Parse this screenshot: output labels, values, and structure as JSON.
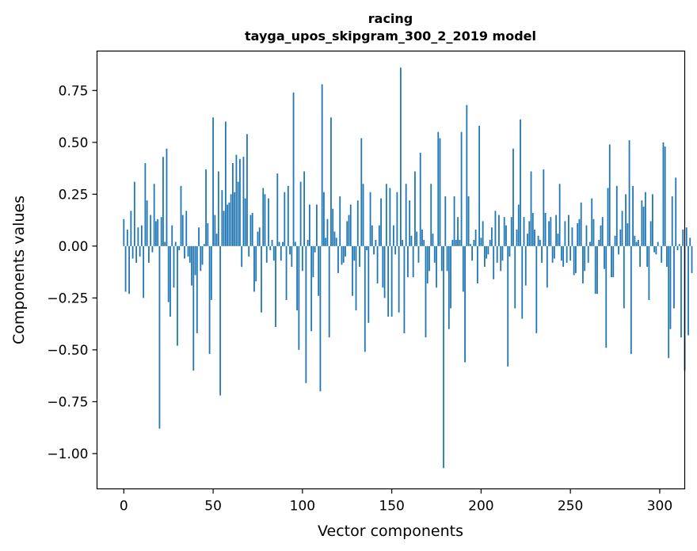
{
  "chart_data": {
    "type": "bar",
    "title": "racing",
    "subtitle": "tayga_upos_skipgram_300_2_2019 model",
    "xlabel": "Vector components",
    "ylabel": "Components values",
    "xlim": [
      -15,
      314
    ],
    "ylim": [
      -1.17,
      0.94
    ],
    "xticks": [
      0,
      50,
      100,
      150,
      200,
      250,
      300
    ],
    "yticks": [
      -1.0,
      -0.75,
      -0.5,
      -0.25,
      0.0,
      0.25,
      0.5,
      0.75
    ],
    "ytick_labels": [
      "−1.00",
      "−0.75",
      "−0.50",
      "−0.25",
      "0.00",
      "0.25",
      "0.50",
      "0.75"
    ],
    "xtick_labels": [
      "0",
      "50",
      "100",
      "150",
      "200",
      "250",
      "300"
    ],
    "bar_color": "#1f77b4",
    "grid": false,
    "values": [
      0.13,
      -0.22,
      0.08,
      -0.23,
      0.17,
      -0.06,
      0.31,
      -0.08,
      0.09,
      -0.05,
      0.1,
      -0.25,
      0.4,
      0.22,
      -0.08,
      0.15,
      -0.03,
      0.3,
      0.12,
      0.13,
      -0.88,
      0.14,
      0.43,
      0.02,
      0.47,
      -0.27,
      -0.34,
      0.1,
      -0.2,
      0.02,
      -0.48,
      -0.02,
      0.29,
      0.15,
      -0.06,
      0.17,
      -0.05,
      -0.08,
      -0.19,
      -0.6,
      -0.14,
      -0.42,
      0.09,
      -0.12,
      -0.09,
      0.01,
      0.37,
      0.11,
      -0.52,
      -0.26,
      0.62,
      0.15,
      0.06,
      0.36,
      -0.72,
      0.27,
      0.17,
      0.6,
      0.2,
      0.21,
      0.25,
      0.4,
      0.26,
      0.44,
      0.31,
      0.42,
      -0.1,
      0.43,
      0.23,
      0.54,
      -0.05,
      0.15,
      0.16,
      -0.22,
      -0.17,
      0.07,
      0.09,
      -0.32,
      0.28,
      0.25,
      -0.08,
      0.23,
      -0.02,
      0.03,
      -0.07,
      -0.39,
      0.35,
      0.02,
      -0.07,
      0.02,
      0.26,
      -0.26,
      0.29,
      -0.04,
      -0.1,
      0.74,
      0.02,
      -0.31,
      -0.5,
      0.31,
      -0.12,
      0.36,
      -0.66,
      0.03,
      0.2,
      -0.41,
      -0.15,
      -0.03,
      0.2,
      -0.24,
      -0.7,
      0.78,
      0.26,
      0.04,
      0.13,
      -0.44,
      0.62,
      0.18,
      0.07,
      0.04,
      -0.13,
      0.24,
      -0.09,
      -0.08,
      -0.05,
      0.12,
      0.15,
      0.2,
      -0.24,
      -0.07,
      -0.31,
      0.22,
      -0.1,
      0.52,
      0.3,
      -0.51,
      -0.02,
      -0.37,
      0.26,
      0.1,
      -0.04,
      0.03,
      -0.18,
      0.1,
      0.23,
      -0.2,
      -0.25,
      0.3,
      -0.34,
      0.28,
      -0.34,
      0.1,
      -0.04,
      0.26,
      -0.32,
      0.86,
      0.03,
      -0.42,
      0.3,
      -0.15,
      0.22,
      0.05,
      -0.15,
      0.36,
      0.07,
      -0.08,
      0.45,
      0.08,
      0.03,
      -0.44,
      -0.18,
      -0.12,
      0.3,
      0.06,
      -0.08,
      -0.2,
      0.55,
      0.52,
      -0.12,
      -1.07,
      0.24,
      -0.12,
      -0.4,
      -0.3,
      0.03,
      0.24,
      0.03,
      0.14,
      0.03,
      0.55,
      -0.22,
      -0.56,
      0.68,
      0.24,
      0.01,
      -0.07,
      0.03,
      0.08,
      -0.18,
      0.58,
      0.04,
      0.12,
      -0.1,
      -0.06,
      -0.04,
      0.03,
      0.09,
      -0.16,
      0.17,
      -0.08,
      0.15,
      -0.12,
      -0.07,
      0.14,
      0.1,
      -0.58,
      -0.05,
      0.14,
      0.47,
      -0.3,
      0.08,
      0.2,
      0.61,
      -0.35,
      0.14,
      -0.19,
      0.06,
      0.12,
      0.36,
      0.16,
      0.08,
      -0.42,
      0.05,
      0.03,
      -0.08,
      0.37,
      0.16,
      -0.2,
      0.12,
      0.14,
      -0.08,
      -0.06,
      0.15,
      0.06,
      0.3,
      -0.07,
      -0.1,
      0.12,
      -0.08,
      0.15,
      -0.07,
      0.09,
      -0.14,
      -0.13,
      0.11,
      0.13,
      0.21,
      -0.18,
      -0.12,
      0.1,
      -0.08,
      0.02,
      0.23,
      0.13,
      -0.23,
      -0.23,
      0.03,
      0.1,
      0.14,
      -0.11,
      -0.49,
      0.28,
      0.49,
      -0.15,
      -0.15,
      0.05,
      0.29,
      -0.04,
      0.08,
      0.17,
      -0.3,
      0.25,
      0.11,
      0.51,
      -0.52,
      0.29,
      0.05,
      0.02,
      0.03,
      -0.1,
      0.22,
      0.19,
      0.26,
      -0.1,
      -0.26,
      0.12,
      0.25,
      -0.03,
      -0.04,
      0.02,
      0.0,
      -0.08,
      0.5,
      0.48,
      -0.1,
      -0.54,
      -0.4,
      0.24,
      -0.3,
      0.33,
      -0.02,
      0.01,
      -0.44,
      0.08,
      -0.6,
      0.09,
      -0.43,
      0.04,
      -0.13
    ]
  }
}
